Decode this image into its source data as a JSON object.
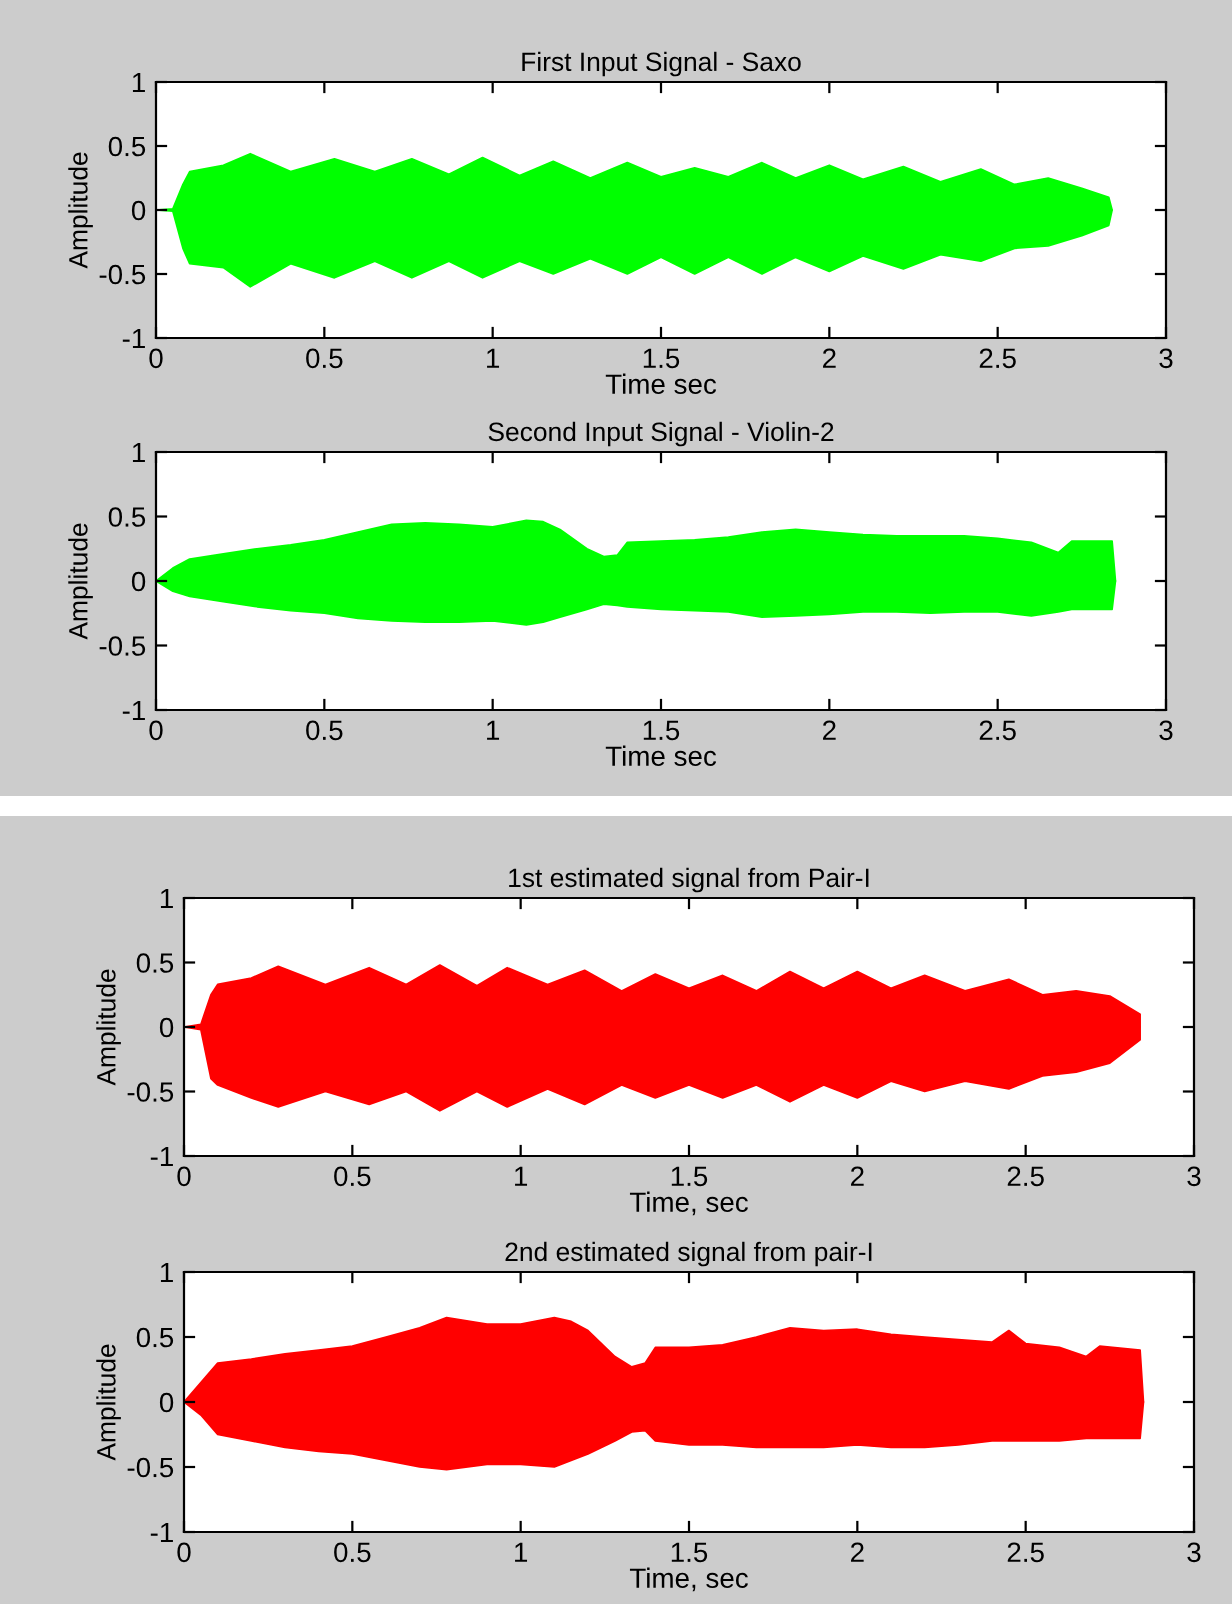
{
  "chart_data": [
    {
      "type": "area",
      "title": "First Input Signal - Saxo",
      "xlabel": "Time sec",
      "ylabel": "Amplitude",
      "xlim": [
        0,
        3
      ],
      "ylim": [
        -1,
        1
      ],
      "xticks": [
        0,
        0.5,
        1,
        1.5,
        2,
        2.5,
        3
      ],
      "yticks": [
        -1,
        -0.5,
        0,
        0.5,
        1
      ],
      "grid": false,
      "legend": false,
      "x": [
        0,
        0.05,
        0.08,
        0.1,
        0.2,
        0.28,
        0.4,
        0.53,
        0.65,
        0.76,
        0.87,
        0.97,
        1.08,
        1.18,
        1.29,
        1.4,
        1.5,
        1.6,
        1.7,
        1.8,
        1.9,
        2.0,
        2.1,
        2.22,
        2.33,
        2.45,
        2.55,
        2.65,
        2.75,
        2.83,
        2.84
      ],
      "series": [
        {
          "color": "#00ff00",
          "values": [
            0,
            0.01,
            0.2,
            0.3,
            0.35,
            0.44,
            0.3,
            0.4,
            0.3,
            0.4,
            0.28,
            0.41,
            0.27,
            0.38,
            0.25,
            0.37,
            0.26,
            0.33,
            0.26,
            0.37,
            0.25,
            0.35,
            0.24,
            0.34,
            0.22,
            0.32,
            0.2,
            0.25,
            0.17,
            0.1,
            0
          ]
        },
        {
          "color": "#00ff00",
          "values": [
            0,
            -0.01,
            -0.3,
            -0.42,
            -0.45,
            -0.6,
            -0.42,
            -0.53,
            -0.4,
            -0.53,
            -0.4,
            -0.53,
            -0.4,
            -0.5,
            -0.38,
            -0.5,
            -0.37,
            -0.5,
            -0.37,
            -0.5,
            -0.37,
            -0.48,
            -0.36,
            -0.46,
            -0.35,
            -0.4,
            -0.3,
            -0.28,
            -0.2,
            -0.12,
            0
          ]
        }
      ]
    },
    {
      "type": "area",
      "title": "Second Input Signal - Violin-2",
      "xlabel": "Time sec",
      "ylabel": "Amplitude",
      "xlim": [
        0,
        3
      ],
      "ylim": [
        -1,
        1
      ],
      "xticks": [
        0,
        0.5,
        1,
        1.5,
        2,
        2.5,
        3
      ],
      "yticks": [
        -1,
        -0.5,
        0,
        0.5,
        1
      ],
      "grid": false,
      "legend": false,
      "x": [
        0,
        0.05,
        0.1,
        0.2,
        0.3,
        0.4,
        0.5,
        0.6,
        0.7,
        0.8,
        0.9,
        1.0,
        1.1,
        1.15,
        1.2,
        1.28,
        1.33,
        1.37,
        1.4,
        1.5,
        1.6,
        1.7,
        1.8,
        1.9,
        2.0,
        2.1,
        2.2,
        2.3,
        2.4,
        2.5,
        2.6,
        2.68,
        2.72,
        2.84,
        2.85
      ],
      "series": [
        {
          "color": "#00ff00",
          "values": [
            0,
            0.1,
            0.17,
            0.21,
            0.25,
            0.28,
            0.32,
            0.38,
            0.44,
            0.45,
            0.44,
            0.42,
            0.47,
            0.46,
            0.4,
            0.25,
            0.19,
            0.2,
            0.3,
            0.31,
            0.32,
            0.34,
            0.38,
            0.4,
            0.38,
            0.36,
            0.35,
            0.35,
            0.35,
            0.33,
            0.3,
            0.22,
            0.31,
            0.31,
            0
          ]
        },
        {
          "color": "#00ff00",
          "values": [
            0,
            -0.08,
            -0.12,
            -0.16,
            -0.2,
            -0.23,
            -0.25,
            -0.29,
            -0.31,
            -0.32,
            -0.32,
            -0.31,
            -0.34,
            -0.32,
            -0.28,
            -0.22,
            -0.18,
            -0.19,
            -0.2,
            -0.22,
            -0.23,
            -0.24,
            -0.28,
            -0.27,
            -0.26,
            -0.24,
            -0.24,
            -0.25,
            -0.24,
            -0.24,
            -0.27,
            -0.24,
            -0.22,
            -0.22,
            0
          ]
        }
      ]
    },
    {
      "type": "area",
      "title": "1st estimated signal from Pair-I",
      "xlabel": "Time, sec",
      "ylabel": "Amplitude",
      "xlim": [
        0,
        3
      ],
      "ylim": [
        -1,
        1
      ],
      "xticks": [
        0,
        0.5,
        1,
        1.5,
        2,
        2.5,
        3
      ],
      "yticks": [
        -1,
        -0.5,
        0,
        0.5,
        1
      ],
      "grid": false,
      "legend": false,
      "x": [
        0,
        0.05,
        0.08,
        0.1,
        0.2,
        0.28,
        0.42,
        0.55,
        0.66,
        0.76,
        0.87,
        0.96,
        1.08,
        1.19,
        1.3,
        1.4,
        1.5,
        1.6,
        1.7,
        1.8,
        1.9,
        2.0,
        2.1,
        2.2,
        2.32,
        2.45,
        2.55,
        2.65,
        2.75,
        2.84
      ],
      "series": [
        {
          "color": "#ff0000",
          "values": [
            0,
            0.02,
            0.25,
            0.33,
            0.38,
            0.47,
            0.33,
            0.46,
            0.33,
            0.48,
            0.32,
            0.46,
            0.33,
            0.44,
            0.28,
            0.41,
            0.3,
            0.4,
            0.28,
            0.43,
            0.3,
            0.43,
            0.3,
            0.4,
            0.28,
            0.37,
            0.25,
            0.28,
            0.24,
            0.1
          ]
        },
        {
          "color": "#ff0000",
          "values": [
            0,
            -0.02,
            -0.4,
            -0.45,
            -0.55,
            -0.62,
            -0.5,
            -0.6,
            -0.5,
            -0.65,
            -0.5,
            -0.62,
            -0.48,
            -0.6,
            -0.45,
            -0.55,
            -0.45,
            -0.55,
            -0.45,
            -0.58,
            -0.45,
            -0.55,
            -0.42,
            -0.5,
            -0.42,
            -0.48,
            -0.38,
            -0.35,
            -0.28,
            -0.1
          ]
        }
      ]
    },
    {
      "type": "area",
      "title": "2nd estimated signal from pair-I",
      "xlabel": "Time, sec",
      "ylabel": "Amplitude",
      "xlim": [
        0,
        3
      ],
      "ylim": [
        -1,
        1
      ],
      "xticks": [
        0,
        0.5,
        1,
        1.5,
        2,
        2.5,
        3
      ],
      "yticks": [
        -1,
        -0.5,
        0,
        0.5,
        1
      ],
      "grid": false,
      "legend": false,
      "x": [
        0,
        0.05,
        0.1,
        0.2,
        0.3,
        0.4,
        0.5,
        0.6,
        0.7,
        0.78,
        0.9,
        1.0,
        1.1,
        1.15,
        1.2,
        1.28,
        1.33,
        1.37,
        1.4,
        1.5,
        1.6,
        1.7,
        1.8,
        1.9,
        2.0,
        2.1,
        2.2,
        2.3,
        2.4,
        2.45,
        2.5,
        2.6,
        2.68,
        2.72,
        2.84,
        2.85
      ],
      "series": [
        {
          "color": "#ff0000",
          "values": [
            0,
            0.15,
            0.3,
            0.33,
            0.37,
            0.4,
            0.43,
            0.5,
            0.57,
            0.65,
            0.6,
            0.6,
            0.65,
            0.62,
            0.55,
            0.35,
            0.27,
            0.3,
            0.42,
            0.42,
            0.44,
            0.5,
            0.57,
            0.55,
            0.56,
            0.52,
            0.5,
            0.48,
            0.46,
            0.55,
            0.45,
            0.42,
            0.35,
            0.43,
            0.4,
            0
          ]
        },
        {
          "color": "#ff0000",
          "values": [
            0,
            -0.1,
            -0.25,
            -0.3,
            -0.35,
            -0.38,
            -0.4,
            -0.45,
            -0.5,
            -0.52,
            -0.48,
            -0.48,
            -0.5,
            -0.45,
            -0.4,
            -0.3,
            -0.23,
            -0.22,
            -0.3,
            -0.33,
            -0.33,
            -0.35,
            -0.35,
            -0.35,
            -0.33,
            -0.35,
            -0.35,
            -0.33,
            -0.3,
            -0.3,
            -0.3,
            -0.3,
            -0.28,
            -0.28,
            -0.28,
            0
          ]
        }
      ]
    }
  ]
}
